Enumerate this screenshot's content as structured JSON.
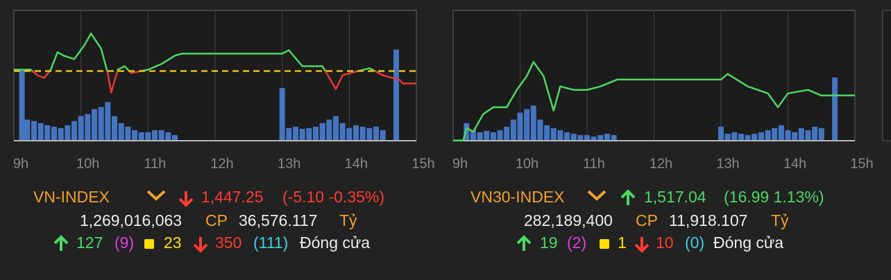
{
  "panels": [
    {
      "name": "VN-INDEX",
      "price": "1,447.25",
      "change": "(-5.10 -0.35%)",
      "volume_shares": "1,269,016,063",
      "shares_unit": "CP",
      "value": "36,576.117",
      "value_unit": "Tỷ",
      "advances": "127",
      "ceiling": "(9)",
      "unchanged": "23",
      "declines": "350",
      "floor": "(111)",
      "status": "Đóng cửa",
      "chart": {
        "xlim": [
          9,
          15
        ],
        "xticks": [
          {
            "value": 9,
            "label": "9h"
          },
          {
            "value": 10,
            "label": "10h"
          },
          {
            "value": 11,
            "label": "11h"
          },
          {
            "value": 12,
            "label": "12h"
          },
          {
            "value": 13,
            "label": "13h"
          },
          {
            "value": 14,
            "label": "14h"
          },
          {
            "value": 15,
            "label": "15h"
          }
        ],
        "ylim": [
          1424,
          1477
        ],
        "reference": 1452.35,
        "line": {
          "x": [
            9.0,
            9.25,
            9.35,
            9.45,
            9.55,
            9.65,
            9.75,
            9.9,
            10.05,
            10.15,
            10.3,
            10.4,
            10.45,
            10.55,
            10.65,
            10.75,
            11.0,
            11.2,
            11.4,
            11.5,
            13.0,
            13.1,
            13.3,
            13.6,
            13.8,
            13.9,
            14.1,
            14.3,
            14.5,
            14.75,
            14.8,
            15.0
          ],
          "values": [
            1452.9,
            1452.9,
            1450.65,
            1449.5,
            1452.9,
            1460,
            1458.5,
            1457.2,
            1462.8,
            1467.6,
            1461.4,
            1451.5,
            1443.6,
            1452.9,
            1454.3,
            1451.5,
            1452.9,
            1455.2,
            1458.6,
            1459.4,
            1459.4,
            1460.8,
            1454.3,
            1454.3,
            1445,
            1450.65,
            1452.1,
            1453.5,
            1450.65,
            1448.7,
            1447.25,
            1447.25
          ]
        },
        "volume": {
          "x": [
            9.12,
            9.2,
            9.3,
            9.4,
            9.5,
            9.6,
            9.7,
            9.8,
            9.9,
            10.0,
            10.1,
            10.2,
            10.3,
            10.4,
            10.5,
            10.6,
            10.7,
            10.8,
            10.9,
            11.0,
            11.1,
            11.2,
            11.3,
            11.4,
            13.0,
            13.1,
            13.2,
            13.3,
            13.4,
            13.5,
            13.6,
            13.7,
            13.8,
            13.9,
            14.0,
            14.1,
            14.2,
            14.3,
            14.4,
            14.5,
            14.7
          ],
          "values": [
            100,
            30,
            28,
            25,
            22,
            20,
            18,
            22,
            28,
            35,
            38,
            45,
            48,
            55,
            35,
            25,
            20,
            15,
            12,
            12,
            15,
            15,
            12,
            8,
            75,
            18,
            20,
            17,
            18,
            20,
            25,
            30,
            35,
            25,
            18,
            22,
            20,
            18,
            20,
            15,
            130
          ]
        }
      }
    },
    {
      "name": "VN30-INDEX",
      "price": "1,517.04",
      "change": "(16.99 1.13%)",
      "volume_shares": "282,189,400",
      "shares_unit": "CP",
      "value": "11,918.107",
      "value_unit": "Tỷ",
      "advances": "19",
      "ceiling": "(2)",
      "unchanged": "1",
      "declines": "10",
      "floor": "(0)",
      "status": "Đóng cửa",
      "chart": {
        "xlim": [
          9,
          15
        ],
        "xticks": [
          {
            "value": 9,
            "label": "9h"
          },
          {
            "value": 10,
            "label": "10h"
          },
          {
            "value": 11,
            "label": "11h"
          },
          {
            "value": 12,
            "label": "12h"
          },
          {
            "value": 13,
            "label": "13h"
          },
          {
            "value": 14,
            "label": "14h"
          },
          {
            "value": 15,
            "label": "15h"
          }
        ],
        "ylim": [
          1500,
          1549
        ],
        "line": {
          "x": [
            9.0,
            9.15,
            9.2,
            9.3,
            9.45,
            9.6,
            9.8,
            9.95,
            10.1,
            10.2,
            10.35,
            10.5,
            10.6,
            10.8,
            11.0,
            11.2,
            11.45,
            13.0,
            13.1,
            13.4,
            13.7,
            13.85,
            14.0,
            14.3,
            14.5,
            15.0
          ],
          "values": [
            1500.05,
            1500.05,
            1504.8,
            1503.4,
            1510,
            1512.6,
            1512.6,
            1519.1,
            1524.3,
            1529.6,
            1524.3,
            1511.3,
            1520.4,
            1519.1,
            1519.1,
            1520.4,
            1523,
            1523,
            1525.1,
            1520.4,
            1517.8,
            1512.6,
            1517.8,
            1519.1,
            1517,
            1517.04
          ]
        },
        "volume": {
          "x": [
            9.2,
            9.3,
            9.4,
            9.5,
            9.6,
            9.7,
            9.8,
            9.9,
            10.0,
            10.1,
            10.2,
            10.3,
            10.4,
            10.5,
            10.6,
            10.7,
            10.8,
            10.9,
            11.0,
            11.1,
            11.2,
            11.3,
            11.4,
            13.0,
            13.1,
            13.2,
            13.3,
            13.4,
            13.5,
            13.6,
            13.7,
            13.8,
            13.9,
            14.0,
            14.1,
            14.2,
            14.3,
            14.4,
            14.5,
            14.7
          ],
          "values": [
            25,
            15,
            12,
            14,
            12,
            15,
            20,
            30,
            40,
            45,
            50,
            30,
            22,
            18,
            15,
            12,
            10,
            8,
            8,
            6,
            8,
            10,
            8,
            20,
            10,
            12,
            10,
            8,
            10,
            12,
            15,
            18,
            22,
            15,
            12,
            18,
            15,
            20,
            18,
            90
          ]
        }
      }
    }
  ]
}
